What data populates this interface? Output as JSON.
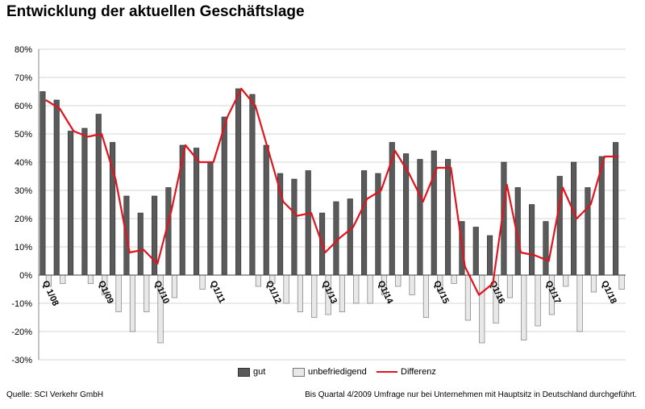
{
  "title": "Entwicklung der aktuellen Geschäftslage",
  "source": "Quelle: SCI Verkehr GmbH",
  "footnote": "Bis Quartal 4/2009 Umfrage nur bei Unternehmen mit Hauptsitz in Deutschland durchgeführt.",
  "colors": {
    "gut": "#5a5a5a",
    "unbefriedigend": "#e8e8e8",
    "differenz": "#e0141e",
    "grid": "#d4d4d4"
  },
  "chart_data": {
    "type": "bar",
    "title": "Entwicklung der aktuellen Geschäftslage",
    "ylim": [
      -30,
      80
    ],
    "yticks": [
      80,
      70,
      60,
      50,
      40,
      30,
      20,
      10,
      0,
      -10,
      -20,
      -30
    ],
    "ytick_labels": [
      "80%",
      "70%",
      "60%",
      "50%",
      "40%",
      "30%",
      "20%",
      "10%",
      "0%",
      "-10%",
      "-20%",
      "-30%"
    ],
    "quarter_labels": [
      {
        "index": 0,
        "label": "Q 1/08"
      },
      {
        "index": 4,
        "label": "Q1/09"
      },
      {
        "index": 8,
        "label": "Q1/10"
      },
      {
        "index": 12,
        "label": "Q1/11"
      },
      {
        "index": 16,
        "label": "Q1/12"
      },
      {
        "index": 20,
        "label": "Q1/13"
      },
      {
        "index": 24,
        "label": "Q1/14"
      },
      {
        "index": 28,
        "label": "Q1/15"
      },
      {
        "index": 32,
        "label": "Q1/16"
      },
      {
        "index": 36,
        "label": "Q1/17"
      },
      {
        "index": 40,
        "label": "Q1/18"
      }
    ],
    "series": [
      {
        "name": "gut",
        "kind": "bar",
        "values": [
          65,
          62,
          51,
          52,
          57,
          47,
          28,
          22,
          28,
          31,
          46,
          45,
          40,
          56,
          66,
          64,
          46,
          36,
          34,
          37,
          22,
          26,
          27,
          37,
          36,
          47,
          43,
          41,
          44,
          41,
          19,
          17,
          14,
          40,
          31,
          25,
          19,
          35,
          40,
          31,
          42,
          47
        ]
      },
      {
        "name": "unbefriedigend",
        "kind": "bar",
        "values": [
          -4,
          -3,
          0,
          -3,
          -7,
          -13,
          -20,
          -13,
          -24,
          -8,
          0,
          -5,
          0,
          0,
          0,
          -4,
          -3,
          -10,
          -13,
          -15,
          -14,
          -13,
          -10,
          -10,
          -7,
          -4,
          -7,
          -15,
          -6,
          -3,
          -16,
          -24,
          -17,
          -8,
          -23,
          -18,
          -14,
          -4,
          -20,
          -6,
          0,
          -5
        ]
      },
      {
        "name": "Differenz",
        "kind": "line",
        "values": [
          62,
          59,
          51,
          49,
          50,
          34,
          8,
          9,
          4,
          23,
          46,
          40,
          40,
          56,
          66,
          60,
          43,
          26,
          21,
          22,
          8,
          13,
          17,
          27,
          30,
          44,
          36,
          26,
          38,
          38,
          3,
          -7,
          -3,
          32,
          8,
          7,
          5,
          31,
          20,
          25,
          42,
          42
        ]
      }
    ]
  }
}
